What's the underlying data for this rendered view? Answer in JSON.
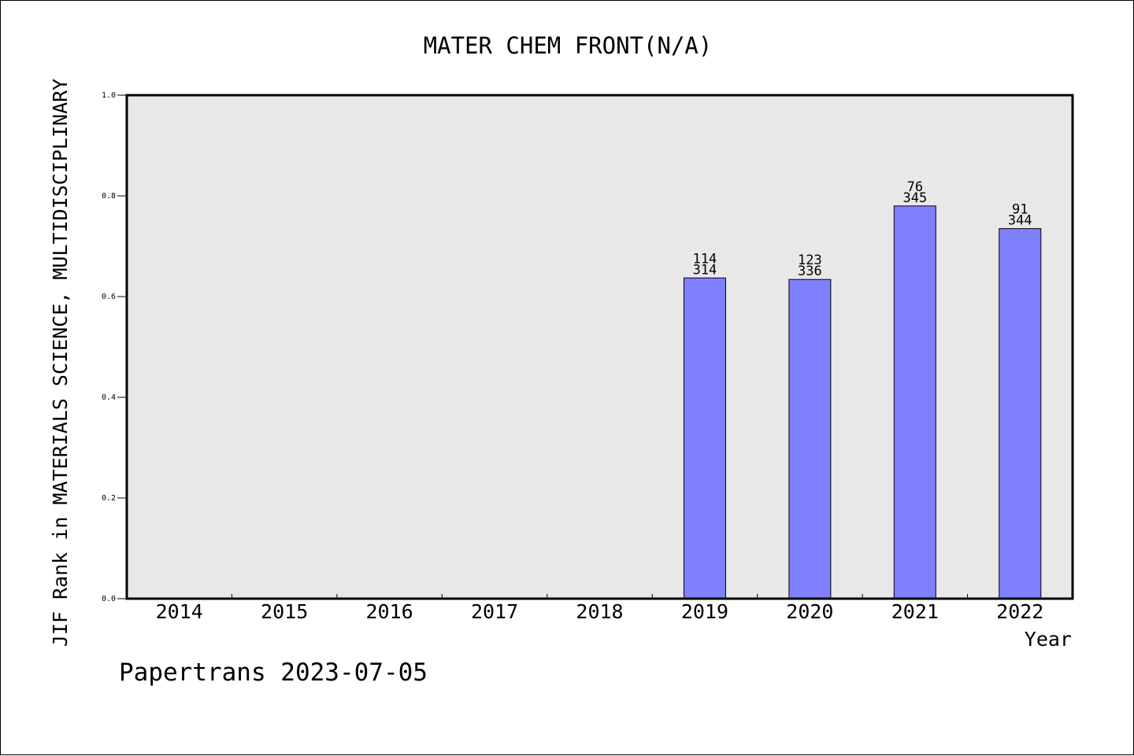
{
  "chart_data": {
    "type": "bar",
    "title": "MATER CHEM FRONT(N/A)",
    "ylabel": "JIF Rank in MATERIALS SCIENCE, MULTIDISCIPLINARY",
    "xlabel": "Year",
    "ylim": [
      0,
      1.0
    ],
    "yticks": [
      "0.0",
      "0.2",
      "0.4",
      "0.6",
      "0.8",
      "1.0"
    ],
    "ytick_values": [
      0,
      0.2,
      0.4,
      0.6,
      0.8,
      1.0
    ],
    "categories": [
      "2014",
      "2015",
      "2016",
      "2017",
      "2018",
      "2019",
      "2020",
      "2021",
      "2022"
    ],
    "values": [
      null,
      null,
      null,
      null,
      null,
      0.637,
      0.634,
      0.78,
      0.735
    ],
    "bar_labels": [
      null,
      null,
      null,
      null,
      null,
      {
        "rank": "114",
        "total": "314"
      },
      {
        "rank": "123",
        "total": "336"
      },
      {
        "rank": "76",
        "total": "345"
      },
      {
        "rank": "91",
        "total": "344"
      }
    ],
    "grid": false,
    "colors": {
      "bar": "#8080ff",
      "plot_background": "#e8e8e8",
      "axis": "#000000"
    }
  },
  "footer": {
    "watermark": "Papertrans 2023-07-05"
  }
}
